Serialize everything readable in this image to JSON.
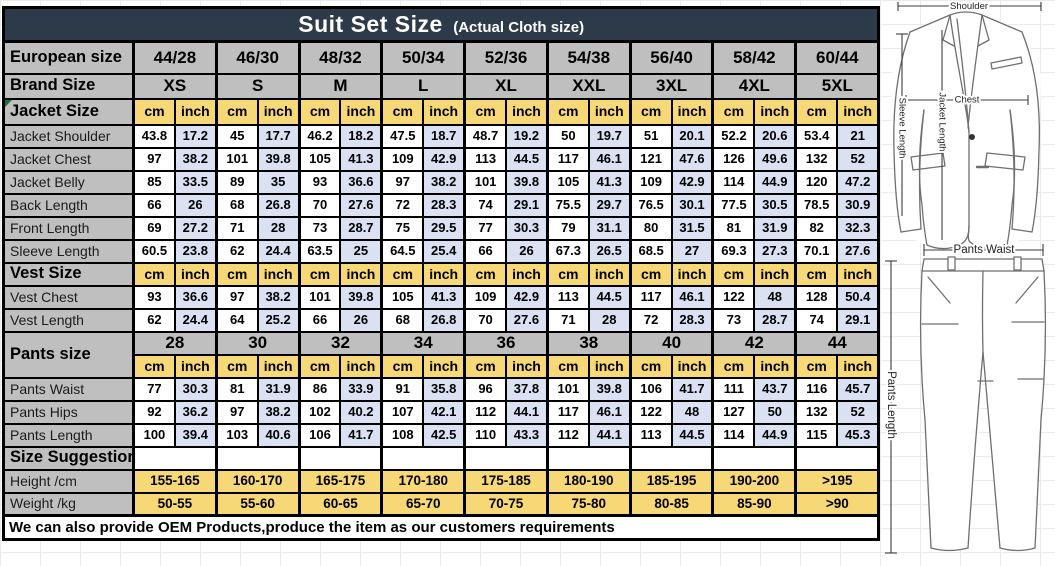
{
  "title": {
    "main": "Suit Set Size",
    "suffix": "(Actual Cloth size)"
  },
  "units": [
    "cm",
    "inch"
  ],
  "colors": {
    "header_bg": "#2d3a49",
    "label_bg": "#bfbfbf",
    "unit_bg": "#f6d876",
    "inch_bg": "#d9e1f2",
    "border": "#000000",
    "comment_marker": "#1e7145"
  },
  "table": {
    "rows": [
      {
        "kind": "group",
        "label": "European size",
        "values": [
          "44/28",
          "46/30",
          "48/32",
          "50/34",
          "52/36",
          "54/38",
          "56/40",
          "58/42",
          "60/44"
        ]
      },
      {
        "kind": "group",
        "label": "Brand Size",
        "values": [
          "XS",
          "S",
          "M",
          "L",
          "XL",
          "XXL",
          "3XL",
          "4XL",
          "5XL"
        ]
      },
      {
        "kind": "units",
        "label": "Jacket Size",
        "marker": true
      },
      {
        "kind": "values",
        "label": "Jacket Shoulder",
        "values": [
          "43.8",
          "17.2",
          "45",
          "17.7",
          "46.2",
          "18.2",
          "47.5",
          "18.7",
          "48.7",
          "19.2",
          "50",
          "19.7",
          "51",
          "20.1",
          "52.2",
          "20.6",
          "53.4",
          "21"
        ]
      },
      {
        "kind": "values",
        "label": "Jacket Chest",
        "values": [
          "97",
          "38.2",
          "101",
          "39.8",
          "105",
          "41.3",
          "109",
          "42.9",
          "113",
          "44.5",
          "117",
          "46.1",
          "121",
          "47.6",
          "126",
          "49.6",
          "132",
          "52"
        ]
      },
      {
        "kind": "values",
        "label": "Jacket Belly",
        "values": [
          "85",
          "33.5",
          "89",
          "35",
          "93",
          "36.6",
          "97",
          "38.2",
          "101",
          "39.8",
          "105",
          "41.3",
          "109",
          "42.9",
          "114",
          "44.9",
          "120",
          "47.2"
        ]
      },
      {
        "kind": "values",
        "label": "Back Length",
        "values": [
          "66",
          "26",
          "68",
          "26.8",
          "70",
          "27.6",
          "72",
          "28.3",
          "74",
          "29.1",
          "75.5",
          "29.7",
          "76.5",
          "30.1",
          "77.5",
          "30.5",
          "78.5",
          "30.9"
        ]
      },
      {
        "kind": "values",
        "label": "Front Length",
        "values": [
          "69",
          "27.2",
          "71",
          "28",
          "73",
          "28.7",
          "75",
          "29.5",
          "77",
          "30.3",
          "79",
          "31.1",
          "80",
          "31.5",
          "81",
          "31.9",
          "82",
          "32.3"
        ]
      },
      {
        "kind": "values",
        "label": "Sleeve Length",
        "values": [
          "60.5",
          "23.8",
          "62",
          "24.4",
          "63.5",
          "25",
          "64.5",
          "25.4",
          "66",
          "26",
          "67.3",
          "26.5",
          "68.5",
          "27",
          "69.3",
          "27.3",
          "70.1",
          "27.6"
        ]
      },
      {
        "kind": "units",
        "label": "Vest Size"
      },
      {
        "kind": "values",
        "label": "Vest Chest",
        "values": [
          "93",
          "36.6",
          "97",
          "38.2",
          "101",
          "39.8",
          "105",
          "41.3",
          "109",
          "42.9",
          "113",
          "44.5",
          "117",
          "46.1",
          "122",
          "48",
          "128",
          "50.4"
        ]
      },
      {
        "kind": "values",
        "label": "Vest Length",
        "values": [
          "62",
          "24.4",
          "64",
          "25.2",
          "66",
          "26",
          "68",
          "26.8",
          "70",
          "27.6",
          "71",
          "28",
          "72",
          "28.3",
          "73",
          "28.7",
          "74",
          "29.1"
        ]
      },
      {
        "kind": "pants",
        "label": "Pants size",
        "values": [
          "28",
          "30",
          "32",
          "34",
          "36",
          "38",
          "40",
          "42",
          "44"
        ]
      },
      {
        "kind": "values",
        "label": "Pants Waist",
        "values": [
          "77",
          "30.3",
          "81",
          "31.9",
          "86",
          "33.9",
          "91",
          "35.8",
          "96",
          "37.8",
          "101",
          "39.8",
          "106",
          "41.7",
          "111",
          "43.7",
          "116",
          "45.7"
        ]
      },
      {
        "kind": "values",
        "label": "Pants Hips",
        "values": [
          "92",
          "36.2",
          "97",
          "38.2",
          "102",
          "40.2",
          "107",
          "42.1",
          "112",
          "44.1",
          "117",
          "46.1",
          "122",
          "48",
          "127",
          "50",
          "132",
          "52"
        ]
      },
      {
        "kind": "values",
        "label": "Pants Length",
        "values": [
          "100",
          "39.4",
          "103",
          "40.6",
          "106",
          "41.7",
          "108",
          "42.5",
          "110",
          "43.3",
          "112",
          "44.1",
          "113",
          "44.5",
          "114",
          "44.9",
          "115",
          "45.3"
        ]
      },
      {
        "kind": "empty",
        "label": "Size Suggestion"
      },
      {
        "kind": "range",
        "label": "Height /cm",
        "values": [
          "155-165",
          "160-170",
          "165-175",
          "170-180",
          "175-185",
          "180-190",
          "185-195",
          "190-200",
          ">195"
        ]
      },
      {
        "kind": "range",
        "label": "Weight /kg",
        "values": [
          "50-55",
          "55-60",
          "60-65",
          "65-70",
          "70-75",
          "75-80",
          "80-85",
          "85-90",
          ">90"
        ]
      }
    ]
  },
  "footer": "We can also provide OEM Products,produce the item as our customers requirements",
  "illustration": {
    "labels": {
      "shoulder": "Shoulder",
      "chest": "Chest",
      "sleeve_length": "Sleeve Length",
      "jacket_length": "Jacket Length",
      "pants_waist": "Pants Waist",
      "pants_length": "Pants Length"
    }
  }
}
